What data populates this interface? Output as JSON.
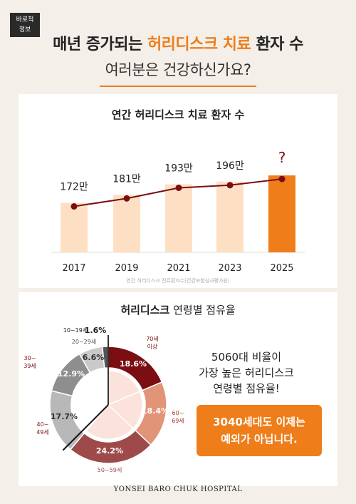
{
  "badge": {
    "line1": "바로척",
    "line2": "정보"
  },
  "headline": {
    "part1": "매년 증가되는 ",
    "accent": "허리디스크 치료",
    "part2": " 환자 수",
    "line2": "여러분은 건강하신가요?"
  },
  "colors": {
    "accent": "#ee7d1a",
    "bar_light": "#fde0c4",
    "line": "#7a0e12",
    "dark_red": "#7a0e12"
  },
  "chart_data": [
    {
      "type": "bar",
      "title": "연간 허리디스크 치료 환자 수",
      "categories": [
        "2017",
        "2019",
        "2021",
        "2023",
        "2025"
      ],
      "values": [
        172,
        181,
        193,
        196,
        null
      ],
      "value_labels": [
        "172만",
        "181만",
        "193만",
        "196만",
        "?"
      ],
      "overlay": "line",
      "highlight_last": true,
      "source": "연간 허리디스크 진료환자수(건강보험심사평가원)"
    },
    {
      "type": "pie",
      "title_bold": "허리디스크",
      "title_light": " 연령별 점유율",
      "slices": [
        {
          "label_lines": [
            "70세",
            "이상"
          ],
          "value": 18.6,
          "value_label": "18.6%",
          "color": "#7a0e12"
        },
        {
          "label_lines": [
            "60~",
            "69세"
          ],
          "value": 18.4,
          "value_label": "18.4%",
          "color": "#e29478"
        },
        {
          "label_lines": [
            "50~59세"
          ],
          "value": 24.2,
          "value_label": "24.2%",
          "color": "#9e4a4a"
        },
        {
          "label_lines": [
            "40~",
            "49세"
          ],
          "value": 17.7,
          "value_label": "17.7%",
          "color": "#b8b8b8"
        },
        {
          "label_lines": [
            "30~",
            "39세"
          ],
          "value": 12.9,
          "value_label": "12.9%",
          "color": "#8e8e8e"
        },
        {
          "label_lines": [
            "20~29세"
          ],
          "value": 6.6,
          "value_label": "6.6%",
          "color": "#c9c9c9"
        },
        {
          "label_lines": [
            "10~19세"
          ],
          "value": 1.6,
          "value_label": "1.6%",
          "color": "#555555"
        }
      ]
    }
  ],
  "note": {
    "line1": "5060대 비율이",
    "line2": "가장 높은 허리디스크",
    "line3": "연령별 점유율!"
  },
  "callout": {
    "line1": "3040세대도 이제는",
    "line2": "예외가 아닙니다."
  },
  "footer": "YONSEI BARO CHUK HOSPITAL"
}
